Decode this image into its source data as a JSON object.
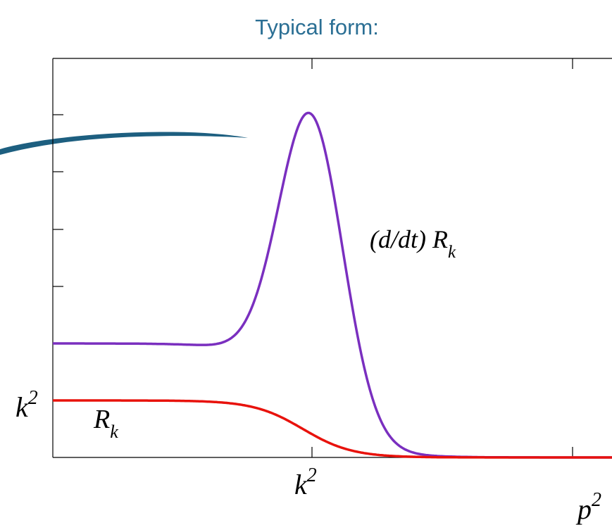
{
  "header": {
    "title": "Typical form:"
  },
  "labels": {
    "y_k2": {
      "base": "k",
      "sup": "2"
    },
    "x_k2": {
      "base": "k",
      "sup": "2"
    },
    "x_p2": {
      "base": "p",
      "sup": "2"
    },
    "regulator": {
      "base": "R",
      "sub": "k"
    },
    "derivative": {
      "prefix": "(d/dt) R",
      "sub": "k"
    }
  }
}
